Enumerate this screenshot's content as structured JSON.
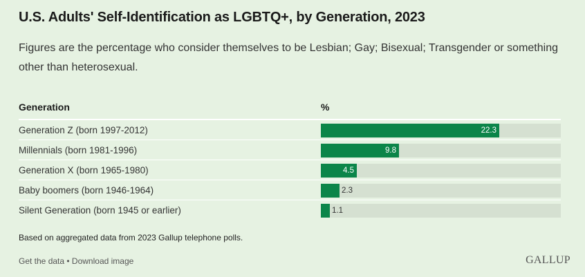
{
  "title": "U.S. Adults' Self-Identification as LGBTQ+, by Generation, 2023",
  "subtitle": "Figures are the percentage who consider themselves to be Lesbian; Gay; Bisexual; Transgender or something other than heterosexual.",
  "table": {
    "col_generation": "Generation",
    "col_percent": "%"
  },
  "chart_data": {
    "type": "bar",
    "orientation": "horizontal",
    "categories": [
      "Generation Z (born 1997-2012)",
      "Millennials (born 1981-1996)",
      "Generation X (born 1965-1980)",
      "Baby boomers (born 1946-1964)",
      "Silent Generation (born 1945 or earlier)"
    ],
    "values": [
      22.3,
      9.8,
      4.5,
      2.3,
      1.1
    ],
    "value_labels": [
      "22.3",
      "9.8",
      "4.5",
      "2.3",
      "1.1"
    ],
    "xlim": [
      0,
      30
    ],
    "bar_color": "#0b8549",
    "track_color": "#d5e0d1"
  },
  "note": "Based on aggregated data from 2023 Gallup telephone polls.",
  "footer": {
    "get_data": "Get the data",
    "separator": " • ",
    "download": "Download image",
    "logo": "GALLUP"
  }
}
